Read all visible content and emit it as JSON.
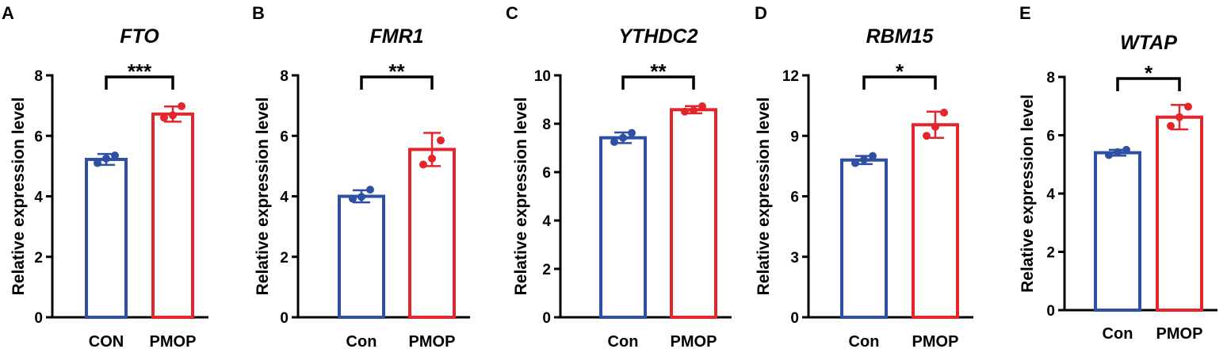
{
  "colors": {
    "con": "#2e4fa3",
    "pmop": "#e3262c"
  },
  "chart_data": [
    {
      "type": "bar",
      "panel": "A",
      "title": "FTO",
      "ylabel": "Relative expression level",
      "xlabel": "",
      "categories": [
        "CON",
        "PMOP"
      ],
      "ylim": [
        0,
        8
      ],
      "yticks": [
        0,
        2,
        4,
        6,
        8
      ],
      "values": [
        5.22,
        6.72
      ],
      "sd": [
        0.18,
        0.25
      ],
      "points": [
        [
          5.1,
          5.25,
          5.35
        ],
        [
          6.6,
          6.68,
          6.98
        ]
      ],
      "significance": "***"
    },
    {
      "type": "bar",
      "panel": "B",
      "title": "FMR1",
      "ylabel": "Relative expression level",
      "xlabel": "",
      "categories": [
        "Con",
        "PMOP"
      ],
      "ylim": [
        0,
        8
      ],
      "yticks": [
        0,
        2,
        4,
        6,
        8
      ],
      "values": [
        4.0,
        5.55
      ],
      "sd": [
        0.2,
        0.55
      ],
      "points": [
        [
          3.92,
          3.98,
          4.22
        ],
        [
          5.05,
          5.25,
          5.85
        ]
      ],
      "significance": "**"
    },
    {
      "type": "bar",
      "panel": "C",
      "title": "YTHDC2",
      "ylabel": "Relative expression level",
      "xlabel": "",
      "categories": [
        "Con",
        "PMOP"
      ],
      "ylim": [
        0,
        10
      ],
      "yticks": [
        0,
        2,
        4,
        6,
        8,
        10
      ],
      "values": [
        7.42,
        8.58
      ],
      "sd": [
        0.22,
        0.15
      ],
      "points": [
        [
          7.25,
          7.42,
          7.62
        ],
        [
          8.5,
          8.55,
          8.72
        ]
      ],
      "significance": "**"
    },
    {
      "type": "bar",
      "panel": "D",
      "title": "RBM15",
      "ylabel": "Relative expression level",
      "xlabel": "",
      "categories": [
        "Con",
        "PMOP"
      ],
      "ylim": [
        0,
        12
      ],
      "yticks": [
        0,
        3,
        6,
        9,
        12
      ],
      "values": [
        7.8,
        9.55
      ],
      "sd": [
        0.2,
        0.65
      ],
      "points": [
        [
          7.65,
          7.82,
          8.0
        ],
        [
          9.0,
          9.45,
          10.15
        ]
      ],
      "significance": "*"
    },
    {
      "type": "bar",
      "panel": "E",
      "title": "WTAP",
      "ylabel": "Relative expression level",
      "xlabel": "",
      "categories": [
        "Con",
        "PMOP"
      ],
      "ylim": [
        0,
        8
      ],
      "yticks": [
        0,
        2,
        4,
        6,
        8
      ],
      "values": [
        5.4,
        6.62
      ],
      "sd": [
        0.1,
        0.42
      ],
      "points": [
        [
          5.32,
          5.42,
          5.5
        ],
        [
          6.32,
          6.62,
          6.98
        ]
      ],
      "significance": "*"
    }
  ]
}
